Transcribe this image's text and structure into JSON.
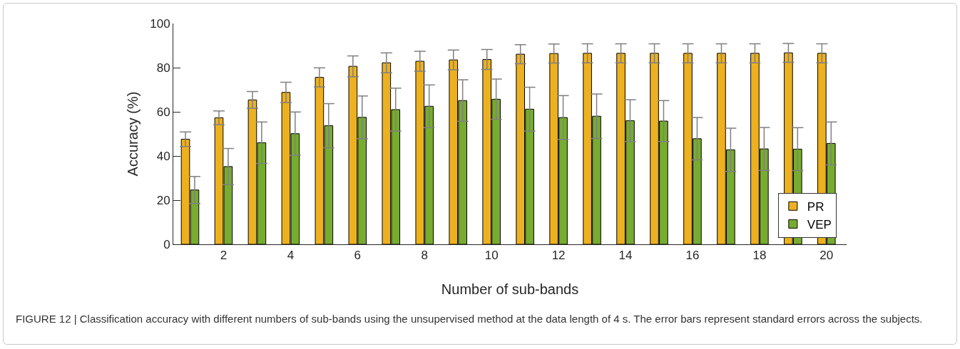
{
  "chart_data": {
    "type": "bar",
    "xlabel": "Number of sub-bands",
    "ylabel": "Accuracy (%)",
    "x": [
      1,
      2,
      3,
      4,
      5,
      6,
      7,
      8,
      9,
      10,
      11,
      12,
      13,
      14,
      15,
      16,
      17,
      18,
      19,
      20
    ],
    "xlim": [
      0.5,
      20.6
    ],
    "xticks": [
      2,
      4,
      6,
      8,
      10,
      12,
      14,
      16,
      18,
      20
    ],
    "ylim": [
      0,
      100
    ],
    "yticks": [
      0,
      20,
      40,
      60,
      80,
      100
    ],
    "series": [
      {
        "name": "PR",
        "color": "#edb120",
        "values": [
          47.6,
          57.3,
          65.4,
          68.8,
          75.6,
          80.6,
          82.2,
          82.9,
          83.5,
          83.7,
          86.1,
          86.4,
          86.5,
          86.5,
          86.5,
          86.5,
          86.5,
          86.5,
          86.7,
          86.5
        ],
        "errors": [
          3.3,
          3.1,
          3.8,
          4.6,
          4.3,
          4.7,
          4.5,
          4.5,
          4.5,
          4.5,
          4.3,
          4.3,
          4.3,
          4.3,
          4.3,
          4.3,
          4.3,
          4.3,
          4.3,
          4.3
        ]
      },
      {
        "name": "VEP",
        "color": "#77ac30",
        "values": [
          24.6,
          35.2,
          46.0,
          50.1,
          53.7,
          57.5,
          61.0,
          62.5,
          65.1,
          65.7,
          61.2,
          57.4,
          58.0,
          56.0,
          55.8,
          47.8,
          42.8,
          43.2,
          43.1,
          45.7
        ],
        "errors": [
          6.1,
          8.2,
          9.4,
          9.8,
          10.0,
          9.7,
          9.7,
          9.7,
          9.4,
          9.1,
          9.9,
          9.9,
          10.1,
          9.5,
          9.3,
          9.6,
          9.8,
          9.7,
          9.7,
          9.7
        ]
      }
    ],
    "legend": "bottom right",
    "grid": false,
    "annotations": [
      "FIGURE 12 | Classification accuracy with different numbers of sub-bands using the unsupervised method at the data length of 4 s. The error bars represent standard errors across the subjects."
    ]
  }
}
